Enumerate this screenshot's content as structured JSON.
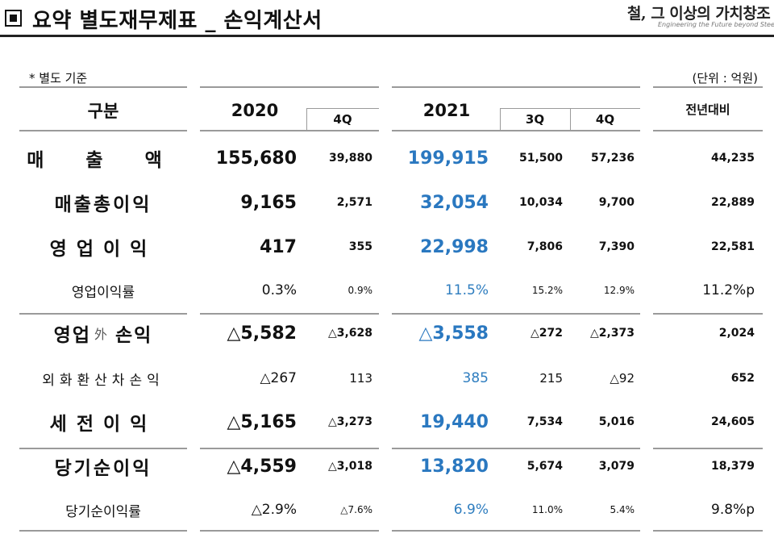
{
  "header": {
    "title": "요약 별도재무제표 _ 손익계산서",
    "logo_text": "철, 그 이상의 가치창조",
    "logo_tagline": "Engineering the Future beyond Steel"
  },
  "note": "* 별도 기준",
  "unit": "(단위 : 억원)",
  "columns": {
    "category": "구분",
    "y2020": "2020",
    "y2020_q4": "4Q",
    "y2021": "2021",
    "y2021_q3": "3Q",
    "y2021_q4": "4Q",
    "yoy": "전년대비"
  },
  "rows": [
    {
      "label_main": "매 출 액",
      "label_sub": "",
      "label_tail": "",
      "y2020": "155,680",
      "y2020_q4": "39,880",
      "y2021": "199,915",
      "y2021_q3": "51,500",
      "y2021_q4": "57,236",
      "yoy": "44,235"
    },
    {
      "label_main": "매출총이익",
      "label_sub": "",
      "label_tail": "",
      "y2020": "9,165",
      "y2020_q4": "2,571",
      "y2021": "32,054",
      "y2021_q3": "10,034",
      "y2021_q4": "9,700",
      "yoy": "22,889"
    },
    {
      "label_main": "영업이익",
      "label_sub": "",
      "label_tail": "",
      "y2020": "417",
      "y2020_q4": "355",
      "y2021": "22,998",
      "y2021_q3": "7,806",
      "y2021_q4": "7,390",
      "yoy": "22,581"
    },
    {
      "label_main": "영업이익률",
      "label_sub": "",
      "label_tail": "",
      "y2020": "0.3%",
      "y2020_q4": "0.9%",
      "y2021": "11.5%",
      "y2021_q3": "15.2%",
      "y2021_q4": "12.9%",
      "yoy": "11.2%p"
    },
    {
      "label_main": "영업",
      "label_sub": "外",
      "label_tail": "손익",
      "y2020": "△5,582",
      "y2020_q4": "△3,628",
      "y2021": "△3,558",
      "y2021_q3": "△272",
      "y2021_q4": "△2,373",
      "yoy": "2,024"
    },
    {
      "label_main": "외화환산차손익",
      "label_sub": "",
      "label_tail": "",
      "y2020": "△267",
      "y2020_q4": "113",
      "y2021": "385",
      "y2021_q3": "215",
      "y2021_q4": "△92",
      "yoy": "652"
    },
    {
      "label_main": "세전이익",
      "label_sub": "",
      "label_tail": "",
      "y2020": "△5,165",
      "y2020_q4": "△3,273",
      "y2021": "19,440",
      "y2021_q3": "7,534",
      "y2021_q4": "5,016",
      "yoy": "24,605"
    },
    {
      "label_main": "당기순이익",
      "label_sub": "",
      "label_tail": "",
      "y2020": "△4,559",
      "y2020_q4": "△3,018",
      "y2021": "13,820",
      "y2021_q3": "5,674",
      "y2021_q4": "3,079",
      "yoy": "18,379"
    },
    {
      "label_main": "당기순이익률",
      "label_sub": "",
      "label_tail": "",
      "y2020": "△2.9%",
      "y2020_q4": "△7.6%",
      "y2021": "6.9%",
      "y2021_q3": "11.0%",
      "y2021_q4": "5.4%",
      "yoy": "9.8%p"
    }
  ],
  "colors": {
    "highlight": "#2a78c0",
    "rule": "#9a9a9a"
  }
}
